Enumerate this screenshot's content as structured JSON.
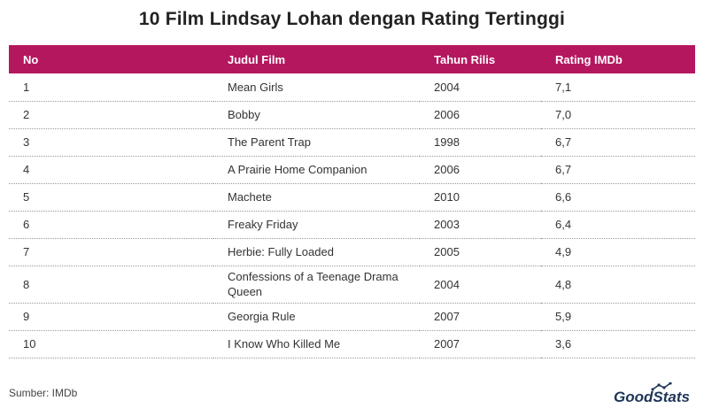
{
  "title": "10 Film Lindsay Lohan dengan Rating Tertinggi",
  "chart_data": {
    "type": "table",
    "title": "10 Film Lindsay Lohan dengan Rating Tertinggi",
    "columns": [
      "No",
      "Judul Film",
      "Tahun Rilis",
      "Rating IMDb"
    ],
    "rows": [
      [
        "1",
        "Mean Girls",
        "2004",
        "7,1"
      ],
      [
        "2",
        "Bobby",
        "2006",
        "7,0"
      ],
      [
        "3",
        "The Parent Trap",
        "1998",
        "6,7"
      ],
      [
        "4",
        "A Prairie Home Companion",
        "2006",
        "6,7"
      ],
      [
        "5",
        "Machete",
        "2010",
        "6,6"
      ],
      [
        "6",
        "Freaky Friday",
        "2003",
        "6,4"
      ],
      [
        "7",
        "Herbie: Fully Loaded",
        "2005",
        "4,9"
      ],
      [
        "8",
        "Confessions of a Teenage Drama Queen",
        "2004",
        "4,8"
      ],
      [
        "9",
        "Georgia Rule",
        "2007",
        "5,9"
      ],
      [
        "10",
        "I Know Who Killed Me",
        "2007",
        "3,6"
      ]
    ]
  },
  "footer": {
    "source": "Sumber: IMDb"
  },
  "brand": {
    "name": "GoodStats",
    "color": "#1d3557",
    "accent": "#b5175f"
  }
}
